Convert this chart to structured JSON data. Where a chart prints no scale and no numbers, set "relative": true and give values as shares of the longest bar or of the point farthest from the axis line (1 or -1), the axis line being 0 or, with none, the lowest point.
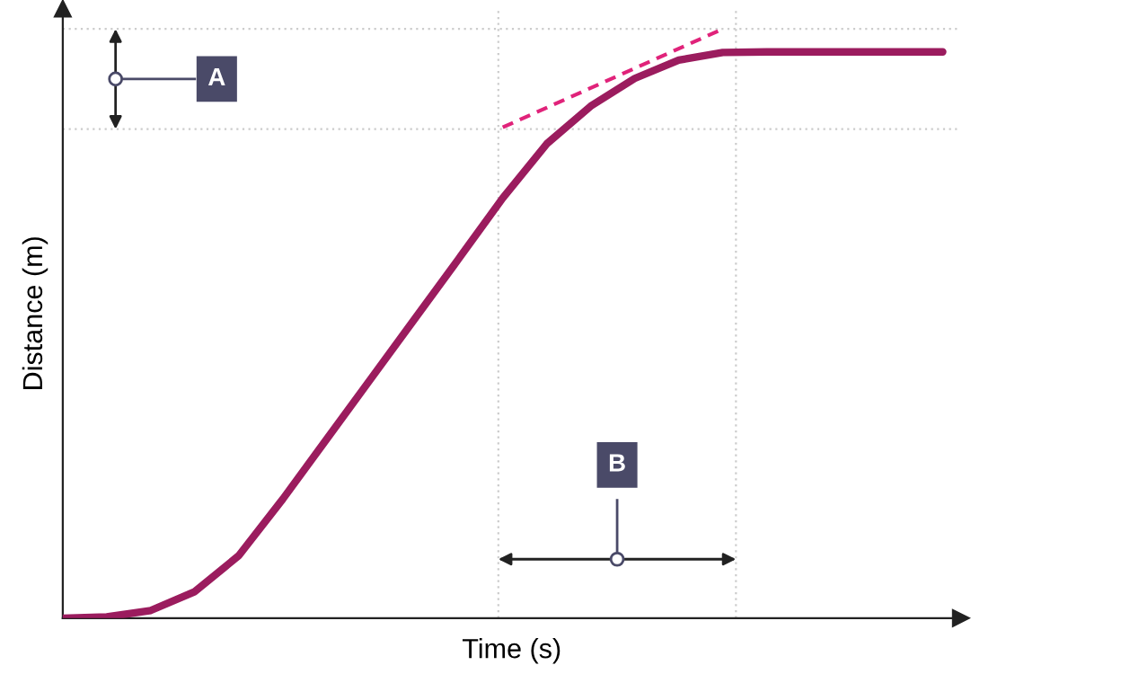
{
  "chart_data": {
    "type": "line",
    "relative": true,
    "xlabel": "Time (s)",
    "ylabel": "Distance (m)",
    "categories": [
      null,
      null,
      null,
      null,
      null,
      null,
      null,
      null,
      null,
      null,
      null,
      null,
      null,
      null,
      null,
      null,
      null,
      null,
      null,
      null,
      null
    ],
    "series": [
      {
        "color": "#9b1c5e",
        "values": [
          0,
          0.002,
          0.013,
          0.045,
          0.106,
          0.202,
          0.304,
          0.406,
          0.508,
          0.61,
          0.713,
          0.805,
          0.869,
          0.916,
          0.947,
          0.96,
          0.961,
          0.961,
          0.961,
          0.961,
          0.961
        ]
      },
      {
        "color": "#e0237a",
        "line_style": "dashed",
        "values": [
          null,
          null,
          null,
          null,
          null,
          null,
          null,
          null,
          null,
          null,
          0.833,
          null,
          null,
          null,
          null,
          1.0,
          null,
          null,
          null,
          null,
          null
        ]
      }
    ],
    "ref_lines": [
      {
        "axis": "y",
        "value": 0.83,
        "color": "#cccccc",
        "line_style": "dotted"
      },
      {
        "axis": "y",
        "value": 1.0,
        "color": "#cccccc",
        "line_style": "dotted"
      }
    ],
    "annotations": [
      "A",
      "B"
    ]
  }
}
